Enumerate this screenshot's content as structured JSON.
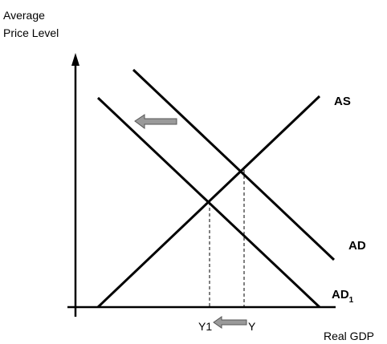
{
  "y_axis_title": {
    "line1": "Average",
    "line2": "Price Level"
  },
  "x_axis_title": "Real GDP",
  "curves": {
    "as_label": "AS",
    "ad_label": "AD",
    "ad1_label": "AD",
    "ad1_subscript": "1"
  },
  "x_marks": {
    "y1_label": "Y1",
    "y_label": "Y"
  },
  "arrows": {
    "shift_direction": "left",
    "fill_color": "#9a9a9a",
    "stroke_color": "#555555"
  },
  "colors": {
    "line": "#000000",
    "background": "#ffffff"
  }
}
